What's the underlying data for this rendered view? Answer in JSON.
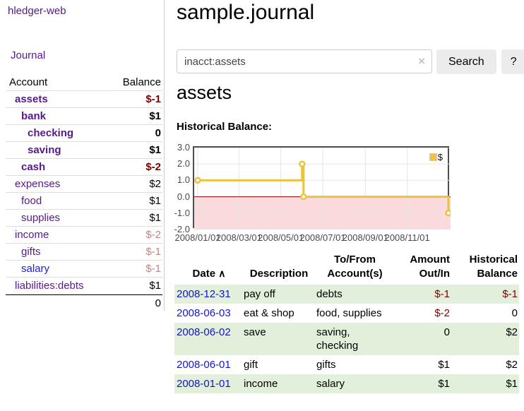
{
  "app": {
    "title": "hledger-web"
  },
  "sidebar": {
    "nav_journal": "Journal",
    "table": {
      "col_account": "Account",
      "col_balance": "Balance",
      "rows": [
        {
          "account": "assets",
          "balance": "$-1"
        },
        {
          "account": "bank",
          "balance": "$1"
        },
        {
          "account": "checking",
          "balance": "0"
        },
        {
          "account": "saving",
          "balance": "$1"
        },
        {
          "account": "cash",
          "balance": "$-2"
        },
        {
          "account": "expenses",
          "balance": "$2"
        },
        {
          "account": "food",
          "balance": "$1"
        },
        {
          "account": "supplies",
          "balance": "$1"
        },
        {
          "account": "income",
          "balance": "$-2"
        },
        {
          "account": "gifts",
          "balance": "$-1"
        },
        {
          "account": "salary",
          "balance": "$-1"
        },
        {
          "account": "liabilities:debts",
          "balance": "$1"
        }
      ],
      "total": "0"
    }
  },
  "main": {
    "title": "sample.journal",
    "search": {
      "value": "inacct:assets",
      "clear_icon": "×",
      "search_label": "Search",
      "help_label": "?"
    },
    "heading": "assets",
    "chart_title": "Historical Balance:"
  },
  "chart_data": {
    "type": "line",
    "title": "Historical Balance",
    "series": [
      {
        "name": "$",
        "color": "#edc240",
        "step": true,
        "points": [
          {
            "date": "2008-01-01",
            "day": 0,
            "value": 1
          },
          {
            "date": "2008-06-01",
            "day": 152,
            "value": 2
          },
          {
            "date": "2008-06-03",
            "day": 154,
            "value": 0
          },
          {
            "date": "2008-12-31",
            "day": 365,
            "value": -1
          }
        ]
      }
    ],
    "x_ticks": [
      {
        "label": "2008/01/01",
        "day": 0
      },
      {
        "label": "2008/03/01",
        "day": 60
      },
      {
        "label": "2008/05/01",
        "day": 121
      },
      {
        "label": "2008/07/01",
        "day": 182
      },
      {
        "label": "2008/09/01",
        "day": 244
      },
      {
        "label": "2008/11/01",
        "day": 305
      }
    ],
    "y_ticks": [
      "3.0",
      "2.0",
      "1.0",
      "0.0",
      "-1.0",
      "-2.0"
    ],
    "ylim": [
      -2,
      3
    ],
    "xlim_days": [
      0,
      368
    ],
    "grid": true,
    "legend": {
      "label": "$",
      "position": "top-right"
    },
    "colors": {
      "below_zero_fill": "#fadada",
      "zero_line": "#8b0000",
      "gridline": "#e6e6e6",
      "border": "#4d4d4d",
      "marker_fill": "#ffffff"
    }
  },
  "register": {
    "headers": {
      "date": "Date",
      "sort_icon": "∧",
      "description": "Description",
      "tofrom": "To/From Account(s)",
      "amount": "Amount Out/In",
      "historical": "Historical Balance"
    },
    "rows": [
      {
        "date": "2008-12-31",
        "description": "pay off",
        "accounts": "debts",
        "amount": "$-1",
        "balance": "$-1"
      },
      {
        "date": "2008-06-03",
        "description": "eat & shop",
        "accounts": "food, supplies",
        "amount": "$-2",
        "balance": "0"
      },
      {
        "date": "2008-06-02",
        "description": "save",
        "accounts": "saving, checking",
        "amount": "0",
        "balance": "$2"
      },
      {
        "date": "2008-06-01",
        "description": "gift",
        "accounts": "gifts",
        "amount": "$1",
        "balance": "$2"
      },
      {
        "date": "2008-01-01",
        "description": "income",
        "accounts": "salary",
        "amount": "$1",
        "balance": "$1"
      }
    ]
  }
}
